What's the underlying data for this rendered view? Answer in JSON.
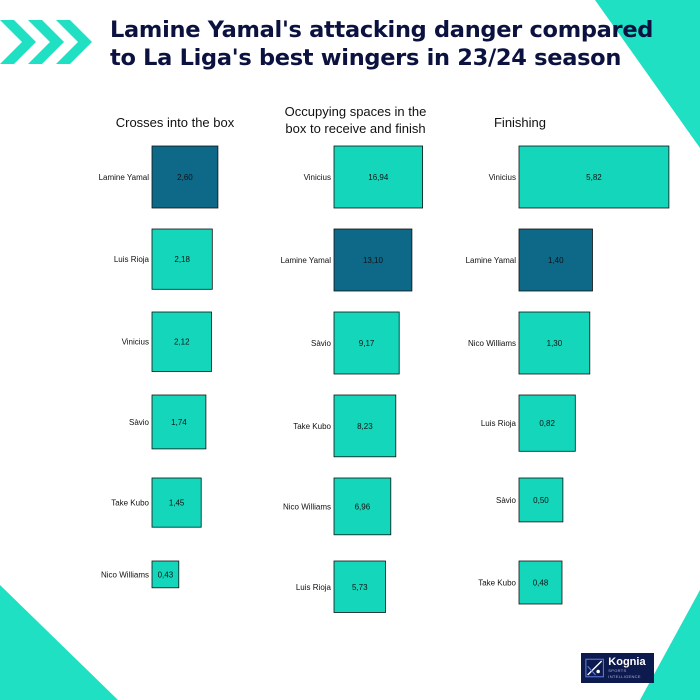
{
  "header": {
    "title_line1": "Lamine Yamal's attacking danger compared",
    "title_line2": "to La Liga's best wingers in 23/24 season"
  },
  "colors": {
    "highlight": "#0e6888",
    "default": "#14d6bb",
    "accent": "#1fe0c3",
    "title": "#0b1240",
    "logo_bg": "#0d1a4d"
  },
  "chart_data": [
    {
      "type": "bar",
      "title": "Crosses into the box",
      "categories": [
        "Lamine Yamal",
        "Luis Rioja",
        "Vinicius",
        "Sàvio",
        "Take Kubo",
        "Nico Williams"
      ],
      "values": [
        2.6,
        2.18,
        2.12,
        1.74,
        1.45,
        0.43
      ],
      "value_labels": [
        "2,60",
        "2,18",
        "2,12",
        "1,74",
        "1,45",
        "0,43"
      ],
      "highlight": "Lamine Yamal"
    },
    {
      "type": "bar",
      "title": "Occupying spaces in the box to receive and finish",
      "categories": [
        "Vinicius",
        "Lamine Yamal",
        "Sàvio",
        "Take Kubo",
        "Nico Williams",
        "Luis Rioja"
      ],
      "values": [
        16.94,
        13.1,
        9.17,
        8.23,
        6.96,
        5.73
      ],
      "value_labels": [
        "16,94",
        "13,10",
        "9,17",
        "8,23",
        "6,96",
        "5,73"
      ],
      "highlight": "Lamine Yamal"
    },
    {
      "type": "bar",
      "title": "Finishing",
      "categories": [
        "Vinicius",
        "Lamine Yamal",
        "Nico Williams",
        "Luis Rioja",
        "Sàvio",
        "Take Kubo"
      ],
      "values": [
        5.82,
        1.4,
        1.3,
        0.82,
        0.5,
        0.48
      ],
      "value_labels": [
        "5,82",
        "1,40",
        "1,30",
        "0,82",
        "0,50",
        "0,48"
      ],
      "highlight": "Lamine Yamal"
    }
  ],
  "logo": {
    "name": "Kognia",
    "tagline": "SPORTS INTELLIGENCE",
    "icon": "kognia-logo-icon"
  }
}
